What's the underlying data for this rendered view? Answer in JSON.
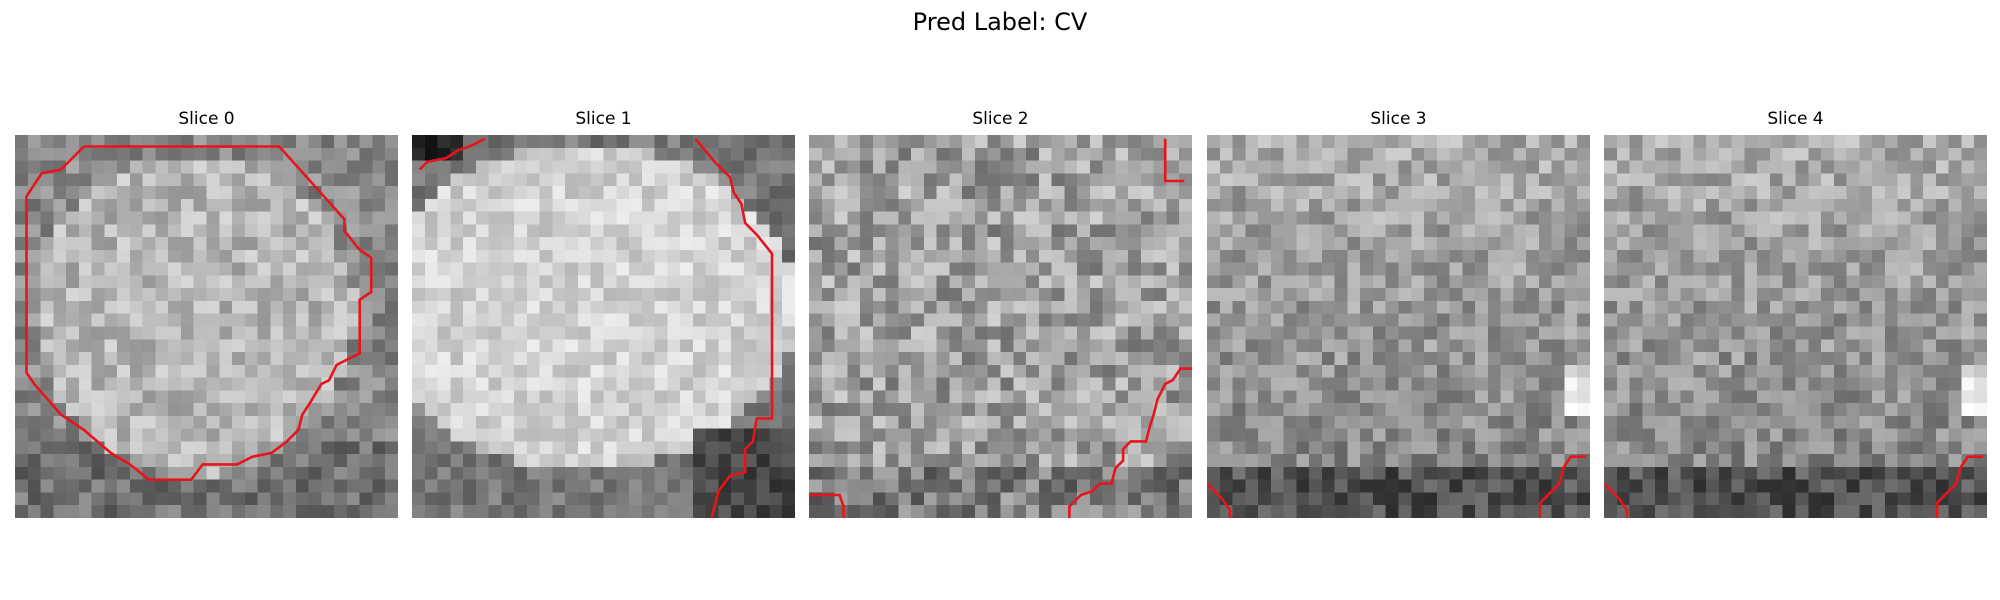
{
  "figure": {
    "title": "Pred Label: CV"
  },
  "colors": {
    "contour": "#e8141c",
    "grayscale_colormap": "gray"
  },
  "slices": [
    {
      "label": "Slice 0",
      "contours": [
        [
          [
            0.18,
            0.03
          ],
          [
            0.69,
            0.03
          ],
          [
            0.86,
            0.22
          ],
          [
            0.86,
            0.25
          ],
          [
            0.9,
            0.3
          ],
          [
            0.93,
            0.32
          ],
          [
            0.93,
            0.41
          ],
          [
            0.9,
            0.43
          ],
          [
            0.9,
            0.57
          ],
          [
            0.84,
            0.6
          ],
          [
            0.82,
            0.64
          ],
          [
            0.8,
            0.65
          ],
          [
            0.77,
            0.7
          ],
          [
            0.75,
            0.73
          ],
          [
            0.74,
            0.77
          ],
          [
            0.71,
            0.8
          ],
          [
            0.67,
            0.83
          ],
          [
            0.62,
            0.84
          ],
          [
            0.58,
            0.86
          ],
          [
            0.49,
            0.86
          ],
          [
            0.46,
            0.9
          ],
          [
            0.35,
            0.9
          ],
          [
            0.3,
            0.86
          ],
          [
            0.25,
            0.83
          ],
          [
            0.18,
            0.77
          ],
          [
            0.12,
            0.73
          ],
          [
            0.05,
            0.65
          ],
          [
            0.03,
            0.62
          ],
          [
            0.03,
            0.16
          ],
          [
            0.07,
            0.1
          ],
          [
            0.12,
            0.09
          ],
          [
            0.18,
            0.03
          ]
        ]
      ]
    },
    {
      "label": "Slice 1",
      "contours": [
        [
          [
            0.02,
            0.09
          ],
          [
            0.04,
            0.07
          ],
          [
            0.09,
            0.06
          ],
          [
            0.12,
            0.04
          ],
          [
            0.15,
            0.03
          ],
          [
            0.19,
            0.01
          ]
        ],
        [
          [
            0.74,
            0.01
          ],
          [
            0.79,
            0.07
          ],
          [
            0.83,
            0.11
          ],
          [
            0.84,
            0.15
          ],
          [
            0.86,
            0.18
          ],
          [
            0.87,
            0.23
          ],
          [
            0.9,
            0.26
          ],
          [
            0.94,
            0.31
          ],
          [
            0.94,
            0.74
          ],
          [
            0.9,
            0.74
          ],
          [
            0.89,
            0.8
          ],
          [
            0.87,
            0.82
          ],
          [
            0.87,
            0.88
          ],
          [
            0.83,
            0.89
          ],
          [
            0.8,
            0.93
          ],
          [
            0.78,
            1.01
          ]
        ]
      ]
    },
    {
      "label": "Slice 2",
      "contours": [
        [
          [
            0.93,
            0.01
          ],
          [
            0.93,
            0.12
          ],
          [
            0.98,
            0.12
          ]
        ],
        [
          [
            0.0,
            0.94
          ],
          [
            0.08,
            0.94
          ],
          [
            0.09,
            0.97
          ],
          [
            0.09,
            1.01
          ]
        ],
        [
          [
            0.68,
            1.01
          ],
          [
            0.68,
            0.97
          ],
          [
            0.71,
            0.94
          ],
          [
            0.74,
            0.93
          ],
          [
            0.76,
            0.91
          ],
          [
            0.79,
            0.91
          ],
          [
            0.8,
            0.87
          ],
          [
            0.82,
            0.85
          ],
          [
            0.82,
            0.82
          ],
          [
            0.84,
            0.8
          ],
          [
            0.88,
            0.8
          ],
          [
            0.89,
            0.76
          ],
          [
            0.9,
            0.73
          ],
          [
            0.91,
            0.69
          ],
          [
            0.93,
            0.65
          ],
          [
            0.95,
            0.64
          ],
          [
            0.97,
            0.61
          ],
          [
            1.0,
            0.61
          ]
        ]
      ]
    },
    {
      "label": "Slice 3",
      "contours": [
        [
          [
            0.0,
            0.91
          ],
          [
            0.04,
            0.95
          ],
          [
            0.06,
            0.98
          ],
          [
            0.06,
            1.01
          ]
        ],
        [
          [
            0.87,
            1.01
          ],
          [
            0.87,
            0.96
          ],
          [
            0.9,
            0.93
          ],
          [
            0.92,
            0.91
          ],
          [
            0.93,
            0.87
          ],
          [
            0.95,
            0.84
          ],
          [
            0.99,
            0.84
          ]
        ]
      ]
    },
    {
      "label": "Slice 4",
      "contours": [
        [
          [
            0.0,
            0.91
          ],
          [
            0.04,
            0.95
          ],
          [
            0.06,
            0.98
          ],
          [
            0.06,
            1.01
          ]
        ],
        [
          [
            0.87,
            1.01
          ],
          [
            0.87,
            0.96
          ],
          [
            0.9,
            0.93
          ],
          [
            0.92,
            0.91
          ],
          [
            0.93,
            0.87
          ],
          [
            0.95,
            0.84
          ],
          [
            0.99,
            0.84
          ]
        ]
      ]
    }
  ]
}
